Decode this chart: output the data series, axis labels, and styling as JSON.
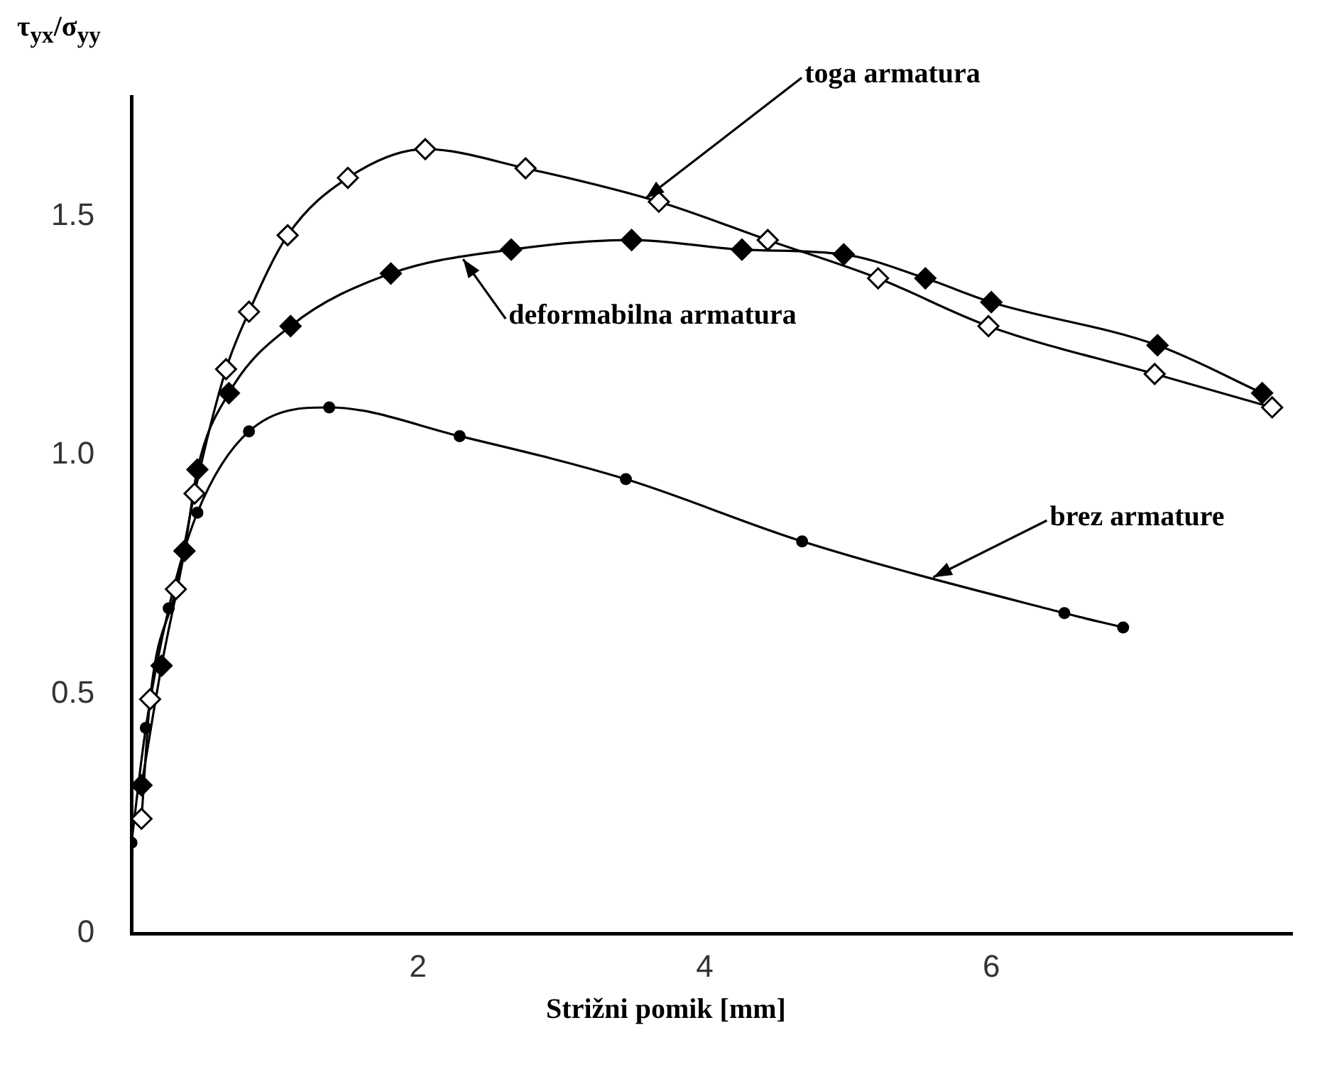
{
  "chart_data": {
    "type": "line",
    "xlabel": "Strižni pomik [mm]",
    "ylabel": "τ$_{yx}$/σ$_{yy}$",
    "xlim": [
      0,
      8.1
    ],
    "ylim": [
      0,
      1.75
    ],
    "xticks": [
      2,
      4,
      6
    ],
    "yticks": [
      0,
      0.5,
      {
        "value": 1,
        "label": "1.0"
      },
      1.5
    ],
    "grid": false,
    "legend": false,
    "line_style": "solid",
    "series": [
      {
        "name": "toga armatura",
        "color": "#000000",
        "marker": "diamond",
        "x": [
          0.07,
          0.13,
          0.31,
          0.44,
          0.66,
          0.82,
          1.09,
          1.51,
          2.05,
          2.75,
          3.68,
          4.44,
          5.21,
          5.98,
          7.14,
          7.96
        ],
        "values": [
          0.24,
          0.49,
          0.72,
          0.92,
          1.18,
          1.3,
          1.46,
          1.58,
          1.64,
          1.6,
          1.53,
          1.45,
          1.37,
          1.27,
          1.17,
          1.1
        ]
      },
      {
        "name": "deformabilna armatura",
        "color": "#000000",
        "marker": "diamond",
        "x": [
          0.07,
          0.21,
          0.37,
          0.46,
          0.68,
          1.11,
          1.81,
          2.65,
          3.49,
          4.26,
          4.97,
          5.54,
          6.0,
          7.16,
          7.89
        ],
        "values": [
          0.31,
          0.56,
          0.8,
          0.97,
          1.13,
          1.27,
          1.38,
          1.43,
          1.45,
          1.43,
          1.42,
          1.37,
          1.32,
          1.23,
          1.13
        ]
      },
      {
        "name": "brez armature",
        "color": "#000000",
        "marker": "circle",
        "x": [
          0.0,
          0.1,
          0.26,
          0.46,
          0.82,
          1.38,
          2.29,
          3.45,
          4.68,
          6.51,
          6.92
        ],
        "values": [
          0.19,
          0.43,
          0.68,
          0.88,
          1.05,
          1.1,
          1.04,
          0.95,
          0.82,
          0.67,
          0.64
        ]
      }
    ]
  }
}
